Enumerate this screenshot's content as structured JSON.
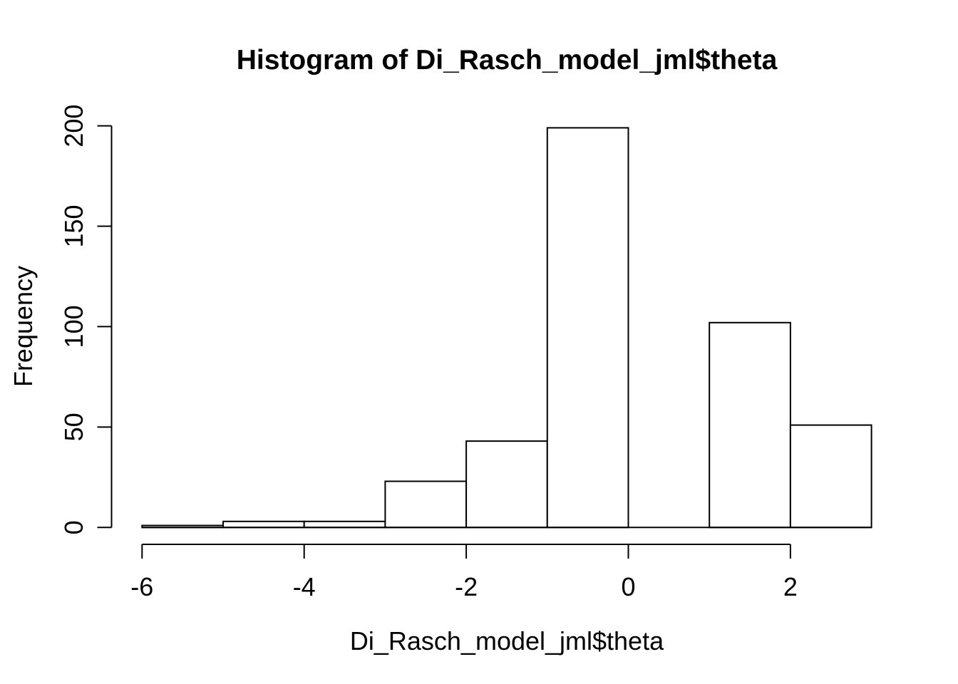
{
  "chart_data": {
    "type": "bar",
    "subtype": "histogram",
    "title": "Histogram of Di_Rasch_model_jml$theta",
    "xlabel": "Di_Rasch_model_jml$theta",
    "ylabel": "Frequency",
    "bin_edges": [
      -6,
      -5,
      -4,
      -3,
      -2,
      -1,
      0,
      1,
      2,
      3
    ],
    "counts": [
      1,
      3,
      3,
      23,
      43,
      199,
      0,
      102,
      51
    ],
    "x_ticks": [
      -6,
      -4,
      -2,
      0,
      2
    ],
    "y_ticks": [
      0,
      50,
      100,
      150,
      200
    ],
    "xlim": [
      -6,
      3
    ],
    "ylim": [
      0,
      200
    ],
    "grid": false,
    "legend": "none",
    "bar_fill": "#ffffff",
    "stroke_color": "#000000",
    "background_color": "#ffffff"
  }
}
